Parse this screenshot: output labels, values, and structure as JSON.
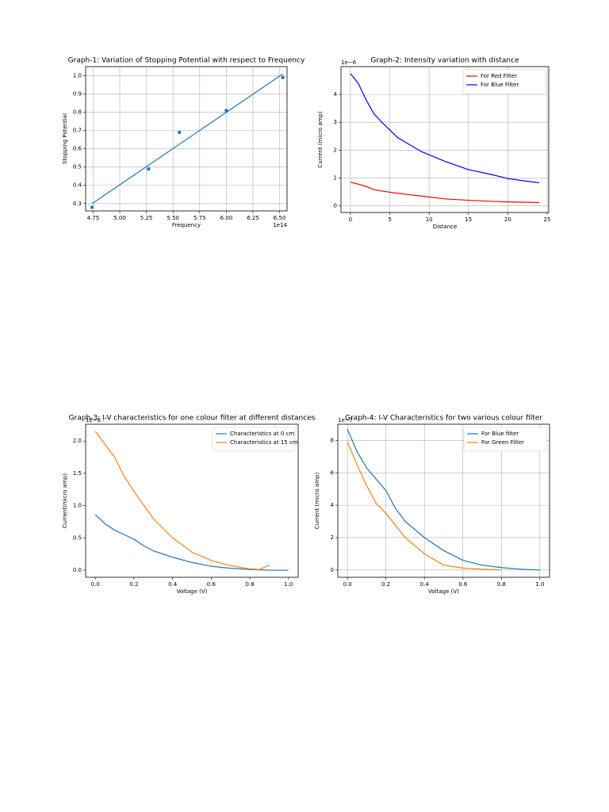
{
  "chart_data": [
    {
      "type": "scatter",
      "title": "Graph-1: Variation of Stopping Potential with respect to Frequency",
      "xlabel": "Frequency",
      "ylabel": "Stopping Potential",
      "x_offset": "1e14",
      "x": [
        4.74,
        5.27,
        5.56,
        6.0,
        6.53
      ],
      "values": [
        0.28,
        0.49,
        0.69,
        0.81,
        0.99
      ],
      "color": "#1f77b4",
      "fit": {
        "x": [
          4.74,
          6.53
        ],
        "values": [
          0.3,
          1.01
        ]
      },
      "xlim": [
        4.68,
        6.57
      ],
      "ylim": [
        0.26,
        1.05
      ],
      "xticks": [
        4.75,
        {
          "value": 5,
          "label": "5.00"
        },
        5.25,
        {
          "value": 5.5,
          "label": "5.50"
        },
        5.75,
        {
          "value": 6,
          "label": "6.00"
        },
        6.25,
        {
          "value": 6.5,
          "label": "6.50"
        }
      ],
      "yticks": [
        0.3,
        0.4,
        0.5,
        0.6,
        0.7,
        0.8,
        0.9,
        {
          "value": 1,
          "label": "1.0"
        }
      ],
      "grid": true
    },
    {
      "type": "line",
      "title": "Graph-2: Intensity variation with distance",
      "xlabel": "Distance",
      "ylabel": "Current (micro amp)",
      "y_offset": "1e−6",
      "x": [
        0,
        1,
        2,
        3,
        4,
        6,
        9,
        12,
        15,
        18,
        20,
        22,
        24
      ],
      "series": [
        {
          "name": "For Red Filter",
          "color": "#ff0000",
          "values": [
            0.85,
            0.78,
            0.7,
            0.58,
            0.53,
            0.45,
            0.35,
            0.25,
            0.2,
            0.16,
            0.14,
            0.13,
            0.12
          ]
        },
        {
          "name": "For Blue Filter",
          "color": "#0000ff",
          "values": [
            4.75,
            4.4,
            3.8,
            3.3,
            3.0,
            2.45,
            1.95,
            1.6,
            1.3,
            1.12,
            0.98,
            0.9,
            0.83
          ]
        }
      ],
      "xlim": [
        -1.2,
        25.2
      ],
      "ylim": [
        -0.24,
        5.0
      ],
      "xticks": [
        0,
        5,
        10,
        15,
        20,
        25
      ],
      "yticks": [
        0,
        1,
        2,
        3,
        4
      ],
      "grid": true,
      "legend": "upper right"
    },
    {
      "type": "line",
      "title": "Graph-3: I-V characteristics for one colour filter at different distances",
      "xlabel": "Voltage (V)",
      "ylabel": "Current(micro amp)",
      "y_offset": "1e−6",
      "series": [
        {
          "name": "Characteristics at 0 cm",
          "color": "#1f77b4",
          "x": [
            0,
            0.05,
            0.1,
            0.15,
            0.2,
            0.25,
            0.3,
            0.4,
            0.5,
            0.6,
            0.7,
            0.8,
            0.9,
            1.0
          ],
          "values": [
            0.86,
            0.72,
            0.62,
            0.55,
            0.48,
            0.38,
            0.3,
            0.2,
            0.12,
            0.06,
            0.03,
            0.01,
            0.0,
            0.0
          ]
        },
        {
          "name": "Characteristics at 15 cm",
          "color": "#ff7f0e",
          "x": [
            0,
            0.05,
            0.1,
            0.15,
            0.2,
            0.3,
            0.4,
            0.5,
            0.6,
            0.7,
            0.8,
            0.85,
            0.9
          ],
          "values": [
            2.15,
            1.95,
            1.75,
            1.45,
            1.22,
            0.8,
            0.5,
            0.28,
            0.15,
            0.07,
            0.02,
            0.01,
            0.08
          ]
        }
      ],
      "xlim": [
        -0.05,
        1.05
      ],
      "ylim": [
        -0.11,
        2.26
      ],
      "xticks": [
        {
          "value": 0,
          "label": "0.0"
        },
        0.2,
        0.4,
        0.6,
        0.8,
        {
          "value": 1,
          "label": "1.0"
        }
      ],
      "yticks": [
        {
          "value": 0,
          "label": "0.0"
        },
        0.5,
        {
          "value": 1,
          "label": "1.0"
        },
        1.5,
        {
          "value": 2,
          "label": "2.0"
        }
      ],
      "grid": false,
      "legend": "upper right"
    },
    {
      "type": "line",
      "title": "Graph-4: I-V Characteristics for two various colour filter",
      "xlabel": "Voltage (V)",
      "ylabel": "Current (micro amp)",
      "y_offset": "1e−7",
      "series": [
        {
          "name": "For Blue filter",
          "color": "#1f77b4",
          "x": [
            0,
            0.05,
            0.1,
            0.15,
            0.2,
            0.25,
            0.3,
            0.4,
            0.5,
            0.6,
            0.7,
            0.8,
            0.9,
            1.0
          ],
          "values": [
            8.7,
            7.3,
            6.3,
            5.6,
            4.9,
            3.8,
            3.0,
            2.0,
            1.2,
            0.6,
            0.3,
            0.15,
            0.05,
            0.0
          ]
        },
        {
          "name": "For Green Filter",
          "color": "#ff7f0e",
          "x": [
            0,
            0.05,
            0.1,
            0.15,
            0.2,
            0.3,
            0.4,
            0.5,
            0.6,
            0.7,
            0.8
          ],
          "values": [
            7.9,
            6.5,
            5.2,
            4.1,
            3.5,
            2.0,
            1.0,
            0.3,
            0.12,
            0.05,
            0.0
          ]
        }
      ],
      "xlim": [
        -0.05,
        1.05
      ],
      "ylim": [
        -0.45,
        9.0
      ],
      "xticks": [
        {
          "value": 0,
          "label": "0.0"
        },
        0.2,
        0.4,
        0.6,
        0.8,
        {
          "value": 1,
          "label": "1.0"
        }
      ],
      "yticks": [
        0,
        2,
        4,
        6,
        8
      ],
      "grid": true,
      "legend": "upper right"
    }
  ]
}
